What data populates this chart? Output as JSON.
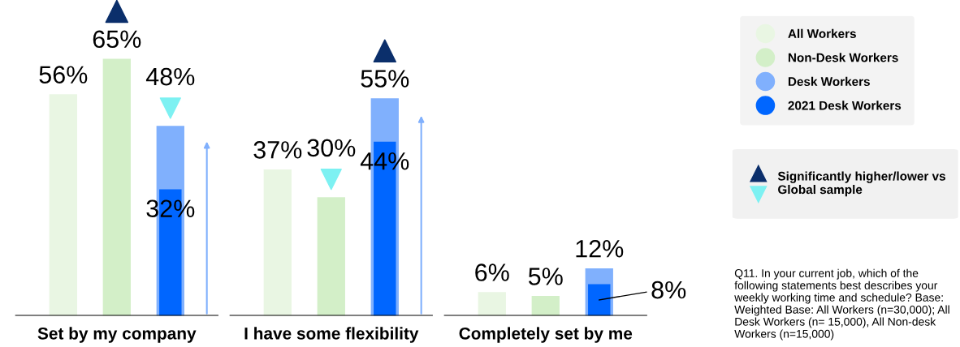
{
  "chart_data": {
    "type": "bar",
    "categories": [
      "Set by my company",
      "I have some flexibility",
      "Completely set by me"
    ],
    "series": [
      {
        "name": "All Workers",
        "color": "#e9f6e3",
        "values": [
          56,
          37,
          6
        ],
        "value_labels": [
          "56%",
          "37%",
          "6%"
        ]
      },
      {
        "name": "Non-Desk Workers",
        "color": "#d3efc8",
        "values": [
          65,
          30,
          5
        ],
        "value_labels": [
          "65%",
          "30%",
          "5%"
        ]
      },
      {
        "name": "Desk Workers",
        "color": "#80b0fd",
        "values": [
          48,
          55,
          12
        ],
        "value_labels": [
          "48%",
          "55%",
          "12%"
        ]
      },
      {
        "name": "2021 Desk Workers",
        "color": "#0066ff",
        "values": [
          32,
          44,
          8
        ],
        "value_labels": [
          "32%",
          "44%",
          "8%"
        ]
      }
    ],
    "annotations": [
      "Significantly higher/lower vs Global sample",
      "Q11. In your current job, which of the following statements best describes your weekly working time and schedule? Base: Weighted Base: All Workers (n=30,000); All Desk Workers (n= 15,000), All Non-desk Workers (n=15,000)"
    ],
    "legend": "right",
    "grid": false,
    "tick_labels": "x"
  }
}
